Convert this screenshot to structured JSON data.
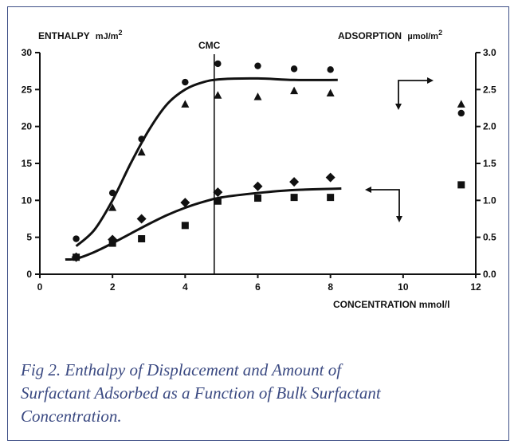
{
  "caption": {
    "line1": "Fig 2. Enthalpy of Displacement and Amount of",
    "line2": "Surfactant Adsorbed as a Function of Bulk Surfactant",
    "line3": "Concentration."
  },
  "chart_data": {
    "type": "scatter",
    "left_axis": {
      "label_main": "ENTHALPY",
      "label_unit": "mJ/m",
      "label_sup": "2",
      "range": [
        0,
        30
      ],
      "ticks": [
        0,
        5,
        10,
        15,
        20,
        25,
        30
      ]
    },
    "right_axis": {
      "label_main": "ADSORPTION",
      "label_unit": "µmol/m",
      "label_sup": "2",
      "range": [
        0,
        3
      ],
      "ticks": [
        "0.0",
        "0.5",
        "1.0",
        "1.5",
        "2.0",
        "2.5",
        "3.0"
      ]
    },
    "x_axis": {
      "label": "CONCENTRATION mmol/l",
      "range": [
        0,
        12
      ],
      "ticks": [
        0,
        2,
        4,
        6,
        8,
        10,
        12
      ]
    },
    "cmc": {
      "label": "CMC",
      "x": 4.8
    },
    "series": [
      {
        "marker": "circle",
        "axis": "left",
        "points": [
          [
            1,
            4.8
          ],
          [
            2,
            11
          ],
          [
            2.8,
            18.3
          ],
          [
            4,
            26
          ],
          [
            4.9,
            28.5
          ],
          [
            6,
            28.2
          ],
          [
            7,
            27.8
          ],
          [
            8,
            27.7
          ],
          [
            11.6,
            21.8
          ]
        ]
      },
      {
        "marker": "triangle",
        "axis": "left",
        "points": [
          [
            2,
            9
          ],
          [
            2.8,
            16.5
          ],
          [
            4,
            23
          ],
          [
            4.9,
            24.2
          ],
          [
            6,
            24
          ],
          [
            7,
            24.8
          ],
          [
            8,
            24.5
          ],
          [
            11.6,
            23
          ]
        ]
      },
      {
        "marker": "diamond",
        "axis": "left",
        "points": [
          [
            1,
            2.3
          ],
          [
            2,
            4.7
          ],
          [
            2.8,
            7.5
          ],
          [
            4,
            9.7
          ],
          [
            4.9,
            11.1
          ],
          [
            6,
            11.9
          ],
          [
            7,
            12.5
          ],
          [
            8,
            13.1
          ]
        ]
      },
      {
        "marker": "square",
        "axis": "left",
        "points": [
          [
            1,
            2.3
          ],
          [
            2,
            4.2
          ],
          [
            2.8,
            4.8
          ],
          [
            4,
            6.6
          ],
          [
            4.9,
            9.9
          ],
          [
            6,
            10.3
          ],
          [
            7,
            10.4
          ],
          [
            8,
            10.4
          ],
          [
            11.6,
            12.1
          ]
        ]
      }
    ],
    "fit_curves": [
      {
        "points": [
          [
            1,
            3.8
          ],
          [
            1.5,
            6
          ],
          [
            2,
            10
          ],
          [
            2.5,
            15
          ],
          [
            3,
            19.5
          ],
          [
            3.5,
            23
          ],
          [
            4,
            25
          ],
          [
            4.5,
            26
          ],
          [
            5,
            26.4
          ],
          [
            6,
            26.5
          ],
          [
            7,
            26.3
          ],
          [
            8.2,
            26.3
          ]
        ]
      },
      {
        "points": [
          [
            0.7,
            2
          ],
          [
            1,
            2.1
          ],
          [
            1.5,
            3
          ],
          [
            2,
            4.2
          ],
          [
            2.5,
            5.5
          ],
          [
            3,
            6.8
          ],
          [
            3.5,
            8
          ],
          [
            4,
            9
          ],
          [
            4.5,
            9.8
          ],
          [
            5,
            10.4
          ],
          [
            6,
            11
          ],
          [
            7,
            11.4
          ],
          [
            8.3,
            11.6
          ]
        ]
      }
    ]
  }
}
